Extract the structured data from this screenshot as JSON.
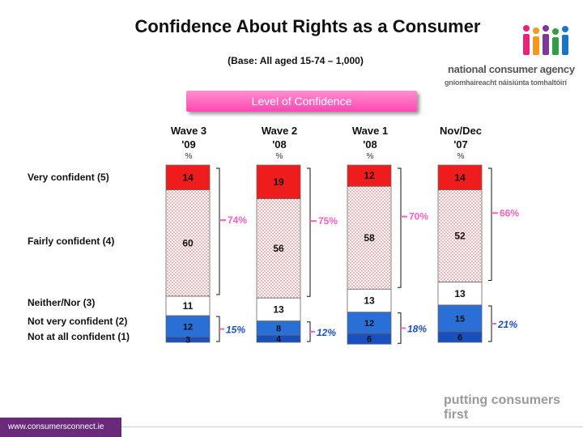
{
  "title": "Confidence About Rights as a Consumer",
  "subtitle": "(Base: All aged 15-74 – 1,000)",
  "logo": {
    "line1": "national consumer agency",
    "line2": "gníomhaireacht náisiúnta tomhaltóirí",
    "icon": "people-figures-logo"
  },
  "banner": "Level of Confidence",
  "tagline": "putting consumers first",
  "footer": "www.consumersconnect.ie",
  "colors": {
    "very": "#ee1c1c",
    "fairly": "#ffffff",
    "neither": "#ffffff",
    "notvery": "#2a6fd6",
    "notatall": "#1a4fc0",
    "pink": "#ff5fbf"
  },
  "chart_data": {
    "type": "bar",
    "stacked": true,
    "title": "Level of Confidence",
    "unit": "%",
    "categories": [
      "Wave 3 '09",
      "Wave 2 '08",
      "Wave 1 '08",
      "Nov/Dec '07"
    ],
    "category_lines": [
      [
        "Wave 3",
        "'09"
      ],
      [
        "Wave 2",
        "'08"
      ],
      [
        "Wave 1",
        "'08"
      ],
      [
        "Nov/Dec",
        "'07"
      ]
    ],
    "pct_label": "%",
    "series": [
      {
        "name": "Very confident (5)",
        "values": [
          14,
          19,
          12,
          14
        ]
      },
      {
        "name": "Fairly confident (4)",
        "values": [
          60,
          56,
          58,
          52
        ]
      },
      {
        "name": "Neither/Nor (3)",
        "values": [
          11,
          13,
          13,
          13
        ]
      },
      {
        "name": "Not very confident (2)",
        "values": [
          12,
          8,
          12,
          15
        ]
      },
      {
        "name": "Not at all confident (1)",
        "values": [
          3,
          4,
          6,
          6
        ]
      }
    ],
    "confident_totals": [
      "74%",
      "75%",
      "70%",
      "66%"
    ],
    "not_confident_totals": [
      "15%",
      "12%",
      "18%",
      "21%"
    ]
  }
}
